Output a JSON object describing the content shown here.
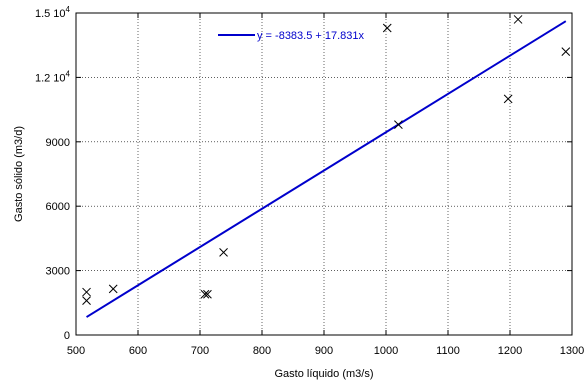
{
  "chart_data": {
    "type": "scatter",
    "title": "",
    "xlabel": "Gasto líquido (m3/s)",
    "ylabel": "Gasto sólido (m3/d)",
    "xlim": [
      500,
      1300
    ],
    "ylim": [
      0,
      15000
    ],
    "x_ticks": [
      500,
      600,
      700,
      800,
      900,
      1000,
      1100,
      1200,
      1300
    ],
    "x_tick_labels": [
      "500",
      "600",
      "700",
      "800",
      "900",
      "1000",
      "1100",
      "1200",
      "1300"
    ],
    "y_ticks": [
      0,
      3000,
      6000,
      9000,
      12000,
      15000
    ],
    "y_tick_labels": [
      {
        "text": "0",
        "exp": ""
      },
      {
        "text": "3000",
        "exp": ""
      },
      {
        "text": "6000",
        "exp": ""
      },
      {
        "text": "9000",
        "exp": ""
      },
      {
        "text": "1.2 10",
        "exp": "4"
      },
      {
        "text": "1.5 10",
        "exp": "4"
      }
    ],
    "grid": true,
    "grid_style": "dotted",
    "legend": {
      "location": "top-center",
      "entries": [
        "y = -8383.5 + 17.831x"
      ]
    },
    "series": [
      {
        "type": "scatter",
        "marker": "x",
        "color": "#000000",
        "points": [
          {
            "x": 517,
            "y": 2000
          },
          {
            "x": 517,
            "y": 1600
          },
          {
            "x": 560,
            "y": 2150
          },
          {
            "x": 708,
            "y": 1900
          },
          {
            "x": 712,
            "y": 1900
          },
          {
            "x": 738,
            "y": 3850
          },
          {
            "x": 1002,
            "y": 14300
          },
          {
            "x": 1020,
            "y": 9800
          },
          {
            "x": 1197,
            "y": 11000
          },
          {
            "x": 1213,
            "y": 14700
          },
          {
            "x": 1290,
            "y": 13200
          }
        ]
      },
      {
        "type": "line",
        "name": "y = -8383.5 + 17.831x",
        "color": "#0000cc",
        "intercept": -8383.5,
        "slope": 17.831,
        "x_range": [
          517,
          1290
        ]
      }
    ]
  }
}
